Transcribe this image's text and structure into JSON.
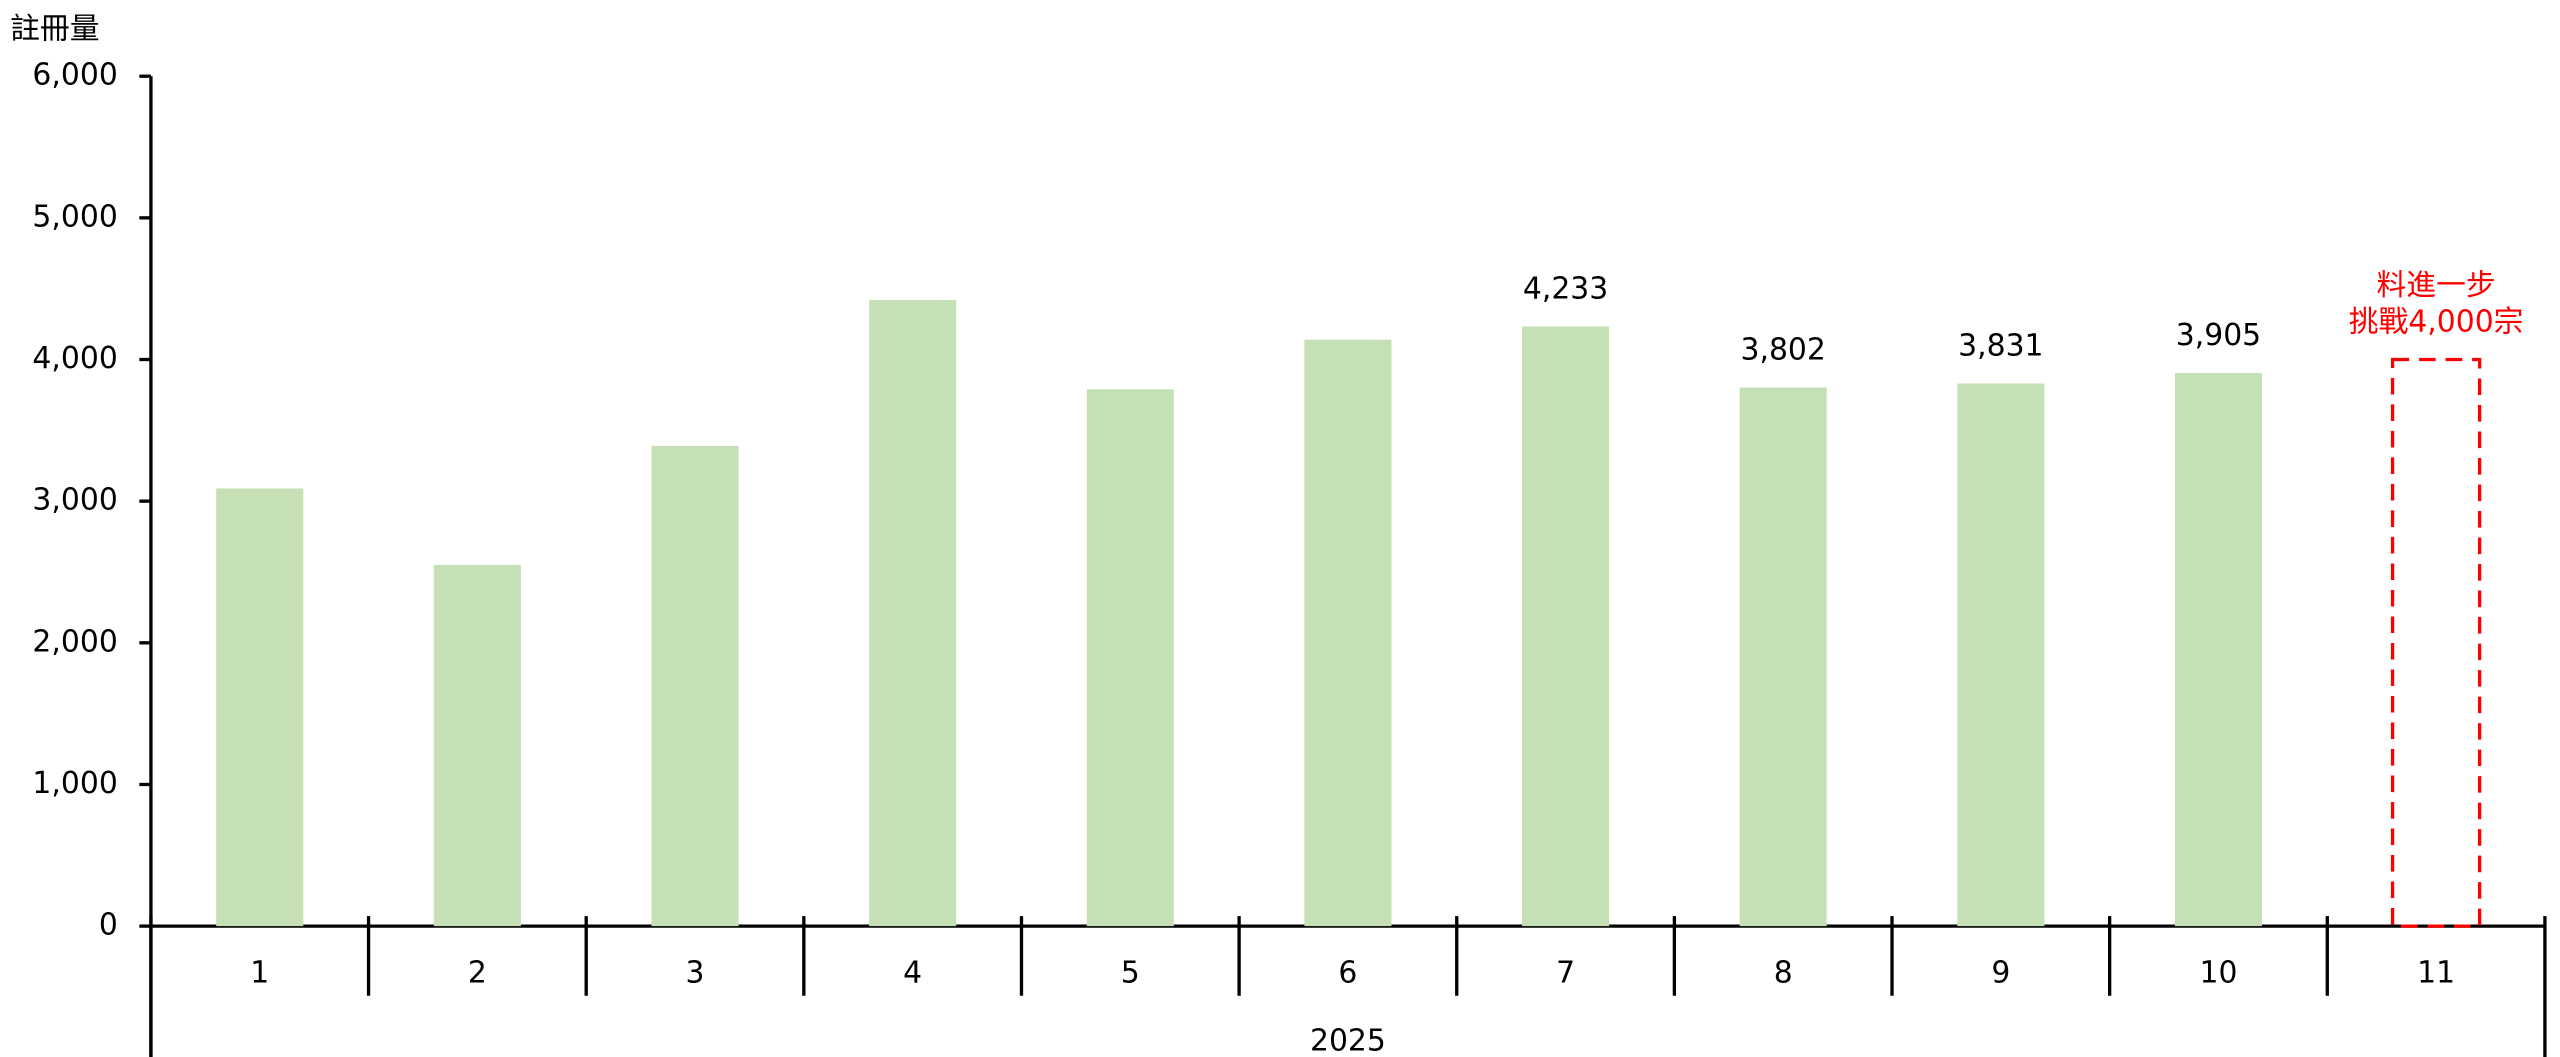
{
  "chart_data": {
    "type": "bar",
    "y_label": "註冊量",
    "group_label": "2025",
    "categories": [
      "1",
      "2",
      "3",
      "4",
      "5",
      "6",
      "7",
      "8",
      "9",
      "10",
      "11"
    ],
    "values": [
      3090,
      2550,
      3390,
      4420,
      3790,
      4140,
      4233,
      3802,
      3831,
      3905,
      null
    ],
    "value_labels": [
      null,
      null,
      null,
      null,
      null,
      null,
      "4,233",
      "3,802",
      "3,831",
      "3,905",
      null
    ],
    "color": "#c5e0b4",
    "ylim": [
      0,
      6000
    ],
    "yticks": [
      0,
      {
        "value": 1000,
        "label": "1,000"
      },
      {
        "value": 2000,
        "label": "2,000"
      },
      {
        "value": 3000,
        "label": "3,000"
      },
      {
        "value": 4000,
        "label": "4,000"
      },
      {
        "value": 5000,
        "label": "5,000"
      },
      {
        "value": 6000,
        "label": "6,000"
      }
    ],
    "annotation": {
      "lines": [
        "料進一步",
        "挑戰4,000宗"
      ],
      "target": 4000,
      "category": "11",
      "color": "#ff0000"
    }
  }
}
